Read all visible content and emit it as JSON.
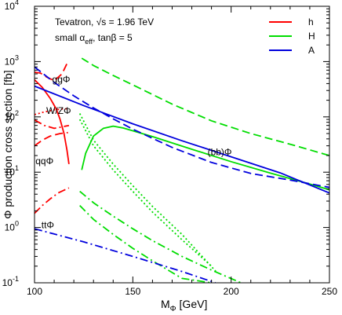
{
  "chart_data": {
    "type": "line",
    "title_line1": "Tevatron, √s = 1.96 TeV",
    "title_line2_a": "small α",
    "title_line2_sub": "eff",
    "title_line2_b": ", tanβ = 5",
    "xlabel_main": "M",
    "xlabel_sub": "Φ",
    "xlabel_unit": " [GeV]",
    "ylabel": "Φ production cross section [fb]",
    "xlim": [
      100,
      250
    ],
    "ylim": [
      0.1,
      10000
    ],
    "yscale": "log",
    "x_ticks": [
      100,
      150,
      200,
      250
    ],
    "y_ticks": [
      {
        "base": "10",
        "exp": "-1",
        "value": 0.1
      },
      {
        "base": "10",
        "exp": "0",
        "value": 1
      },
      {
        "base": "10",
        "exp": "1",
        "value": 10
      },
      {
        "base": "10",
        "exp": "2",
        "value": 100
      },
      {
        "base": "10",
        "exp": "3",
        "value": 1000
      },
      {
        "base": "10",
        "exp": "4",
        "value": 10000
      }
    ],
    "legend": {
      "placement": "top-right",
      "entries": [
        {
          "label": "h",
          "color": "#ff0000"
        },
        {
          "label": "H",
          "color": "#00dd00"
        },
        {
          "label": "A",
          "color": "#0000dd"
        }
      ]
    },
    "annotations": [
      {
        "text": "ggΦ",
        "x": 109,
        "y": 480
      },
      {
        "text": "W/ZΦ",
        "x": 106,
        "y": 130
      },
      {
        "text": "qqΦ",
        "x": 100.5,
        "y": 16
      },
      {
        "text": "(bb)Φ",
        "x": 188,
        "y": 23
      },
      {
        "text": "ttΦ",
        "x": 103.5,
        "y": 1.1
      }
    ],
    "series": [
      {
        "higgs": "h",
        "process": "gg",
        "style": "dashed",
        "color": "#ff0000",
        "x": [
          100,
          103,
          106,
          110,
          114,
          117
        ],
        "y": [
          640,
          620,
          530,
          450,
          600,
          1000
        ]
      },
      {
        "higgs": "h",
        "process": "bb",
        "style": "solid",
        "color": "#ff0000",
        "x": [
          100,
          104,
          108,
          111,
          113,
          115,
          116.5,
          117.5
        ],
        "y": [
          470,
          340,
          215,
          140,
          90,
          50,
          25,
          14
        ]
      },
      {
        "higgs": "h",
        "process": "WZ",
        "style": "dotted",
        "color": "#ff0000",
        "x": [
          100,
          105,
          110,
          115,
          117.5
        ],
        "y": [
          110,
          123,
          134,
          140,
          140
        ]
      },
      {
        "higgs": "h",
        "process": "qq",
        "style": "dashdot",
        "color": "#ff0000",
        "x": [
          100,
          105,
          110,
          113,
          117.5
        ],
        "y": [
          88,
          70,
          62,
          65,
          70
        ]
      },
      {
        "higgs": "h",
        "process": "qq-low",
        "style": "dashed",
        "color": "#ff0000",
        "x": [
          100,
          104,
          108,
          113,
          117
        ],
        "y": [
          30,
          38,
          45,
          50,
          52
        ]
      },
      {
        "higgs": "h",
        "process": "tt",
        "style": "dashdot",
        "color": "#ff0000",
        "x": [
          100,
          104,
          108,
          112,
          117.5
        ],
        "y": [
          1.8,
          2.5,
          3.3,
          4.2,
          5.2
        ]
      },
      {
        "higgs": "H",
        "process": "gg",
        "style": "dashed",
        "color": "#00dd00",
        "x": [
          124,
          130,
          140,
          150,
          170,
          190,
          210,
          230,
          250
        ],
        "y": [
          1150,
          850,
          560,
          380,
          170,
          85,
          50,
          32,
          20
        ]
      },
      {
        "higgs": "H",
        "process": "bb",
        "style": "solid",
        "color": "#00dd00",
        "x": [
          124,
          126,
          130,
          135,
          140,
          145,
          150,
          160,
          180,
          200,
          220,
          240,
          250
        ],
        "y": [
          11,
          22,
          45,
          62,
          68,
          63,
          56,
          44,
          26,
          15.5,
          9.6,
          6.1,
          4.8
        ]
      },
      {
        "higgs": "H",
        "process": "WZ",
        "style": "dotted",
        "color": "#00dd00",
        "x": [
          123,
          130,
          140,
          150,
          160,
          175,
          190
        ],
        "y": [
          90,
          30,
          11,
          4.5,
          1.9,
          0.6,
          0.2
        ]
      },
      {
        "higgs": "H",
        "process": "qq",
        "style": "dotted",
        "color": "#00dd00",
        "x": [
          123,
          130,
          140,
          150,
          160,
          175,
          193
        ],
        "y": [
          115,
          38,
          14,
          5.7,
          2.4,
          0.75,
          0.15
        ]
      },
      {
        "higgs": "H",
        "process": "tt",
        "style": "dashdot",
        "color": "#00dd00",
        "x": [
          123,
          130,
          140,
          150,
          160,
          175,
          190,
          205
        ],
        "y": [
          4.5,
          2.8,
          1.6,
          0.95,
          0.58,
          0.3,
          0.17,
          0.1
        ]
      },
      {
        "higgs": "H",
        "process": "tt2",
        "style": "dashdot",
        "color": "#00dd00",
        "x": [
          123,
          130,
          140,
          150,
          160,
          175,
          190
        ],
        "y": [
          2.5,
          1.4,
          0.75,
          0.42,
          0.25,
          0.12,
          0.1
        ]
      },
      {
        "higgs": "A",
        "process": "gg",
        "style": "dashed",
        "color": "#0000dd",
        "x": [
          100,
          110,
          120,
          130,
          140,
          150,
          170,
          190,
          210,
          230,
          250
        ],
        "y": [
          800,
          420,
          240,
          145,
          92,
          60,
          28,
          15,
          9.5,
          7.2,
          5.3
        ]
      },
      {
        "higgs": "A",
        "process": "bb",
        "style": "solid",
        "color": "#0000dd",
        "x": [
          100,
          125,
          150,
          175,
          200,
          225,
          250
        ],
        "y": [
          360,
          160,
          75,
          37,
          19,
          9.7,
          4.2
        ]
      },
      {
        "higgs": "A",
        "process": "tt",
        "style": "dashdot",
        "color": "#0000dd",
        "x": [
          100,
          125,
          150,
          175,
          192
        ],
        "y": [
          0.95,
          0.55,
          0.3,
          0.16,
          0.1
        ]
      }
    ]
  }
}
